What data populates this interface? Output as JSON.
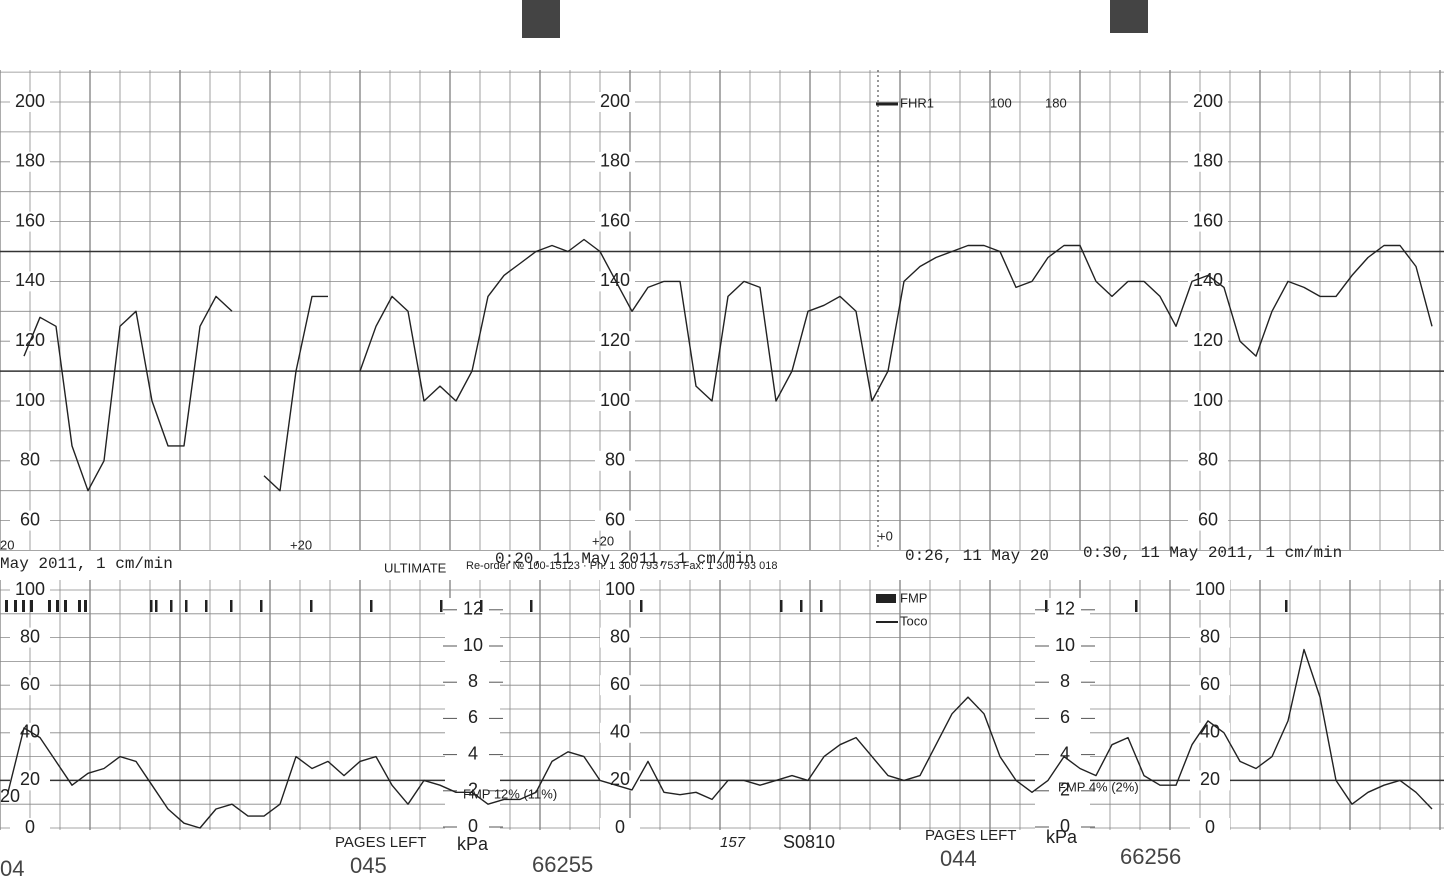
{
  "header": {
    "left_fragment": "May 2011, 1 cm/min",
    "printer": "ULTIMATE",
    "reorder": "Re-order № 100-15123 · Ph: 1 300 793 753 Fax: 1 300 793 018",
    "stamp1": "0:20, 11 May 2011, 1 cm/min",
    "stamp2": "0:26, 11 May 20",
    "stamp3": "0:30, 11 May 2011, 1 cm/min"
  },
  "fhr": {
    "legend": "FHR1",
    "alarm_low": "100",
    "alarm_high": "180",
    "ticks": [
      200,
      180,
      160,
      140,
      120,
      100,
      80,
      60
    ],
    "offset_labels": [
      "20",
      "+20",
      "+20",
      "+0"
    ],
    "values": [
      null,
      115,
      128,
      125,
      85,
      70,
      80,
      125,
      130,
      100,
      85,
      85,
      125,
      135,
      130,
      null,
      75,
      70,
      110,
      135,
      135,
      null,
      110,
      125,
      135,
      130,
      100,
      105,
      100,
      110,
      135,
      142,
      146,
      150,
      152,
      150,
      154,
      150,
      140,
      130,
      138,
      140,
      140,
      105,
      100,
      135,
      140,
      138,
      100,
      110,
      130,
      132,
      135,
      130,
      100,
      110,
      140,
      145,
      148,
      150,
      152,
      152,
      150,
      138,
      140,
      148,
      152,
      152,
      140,
      135,
      140,
      140,
      135,
      125,
      140,
      142,
      138,
      120,
      115,
      130,
      140,
      138,
      135,
      135,
      142,
      148,
      152,
      152,
      145,
      125
    ]
  },
  "toco": {
    "legend_fmp": "FMP",
    "legend_toco": "Toco",
    "ticks": [
      100,
      80,
      60,
      40,
      20,
      0
    ],
    "kpa_ticks": [
      12,
      10,
      8,
      6,
      4,
      2,
      0
    ],
    "kpa_unit": "kPa",
    "fmp_stats": [
      "FMP 12% (11%)",
      "FMP 4% (2%)"
    ],
    "left_label": "20",
    "values": [
      15,
      42,
      38,
      28,
      18,
      23,
      25,
      30,
      28,
      18,
      8,
      2,
      0,
      8,
      10,
      5,
      5,
      10,
      30,
      25,
      28,
      22,
      28,
      30,
      18,
      10,
      20,
      18,
      15,
      15,
      10,
      12,
      12,
      15,
      28,
      32,
      30,
      20,
      18,
      16,
      28,
      15,
      14,
      15,
      12,
      20,
      20,
      18,
      20,
      22,
      20,
      30,
      35,
      38,
      30,
      22,
      20,
      22,
      35,
      48,
      55,
      48,
      30,
      20,
      15,
      20,
      30,
      25,
      22,
      35,
      38,
      22,
      18,
      18,
      35,
      45,
      40,
      28,
      25,
      30,
      45,
      75,
      55,
      20,
      10,
      15,
      18,
      20,
      15,
      8
    ]
  },
  "footer": {
    "pages_left_1": "PAGES LEFT",
    "pages_1": "045",
    "serial_1": "66255",
    "number": "157",
    "code": "S0810",
    "pages_left_2": "PAGES LEFT",
    "pages_2": "044",
    "serial_2": "66256",
    "edge": "04"
  }
}
